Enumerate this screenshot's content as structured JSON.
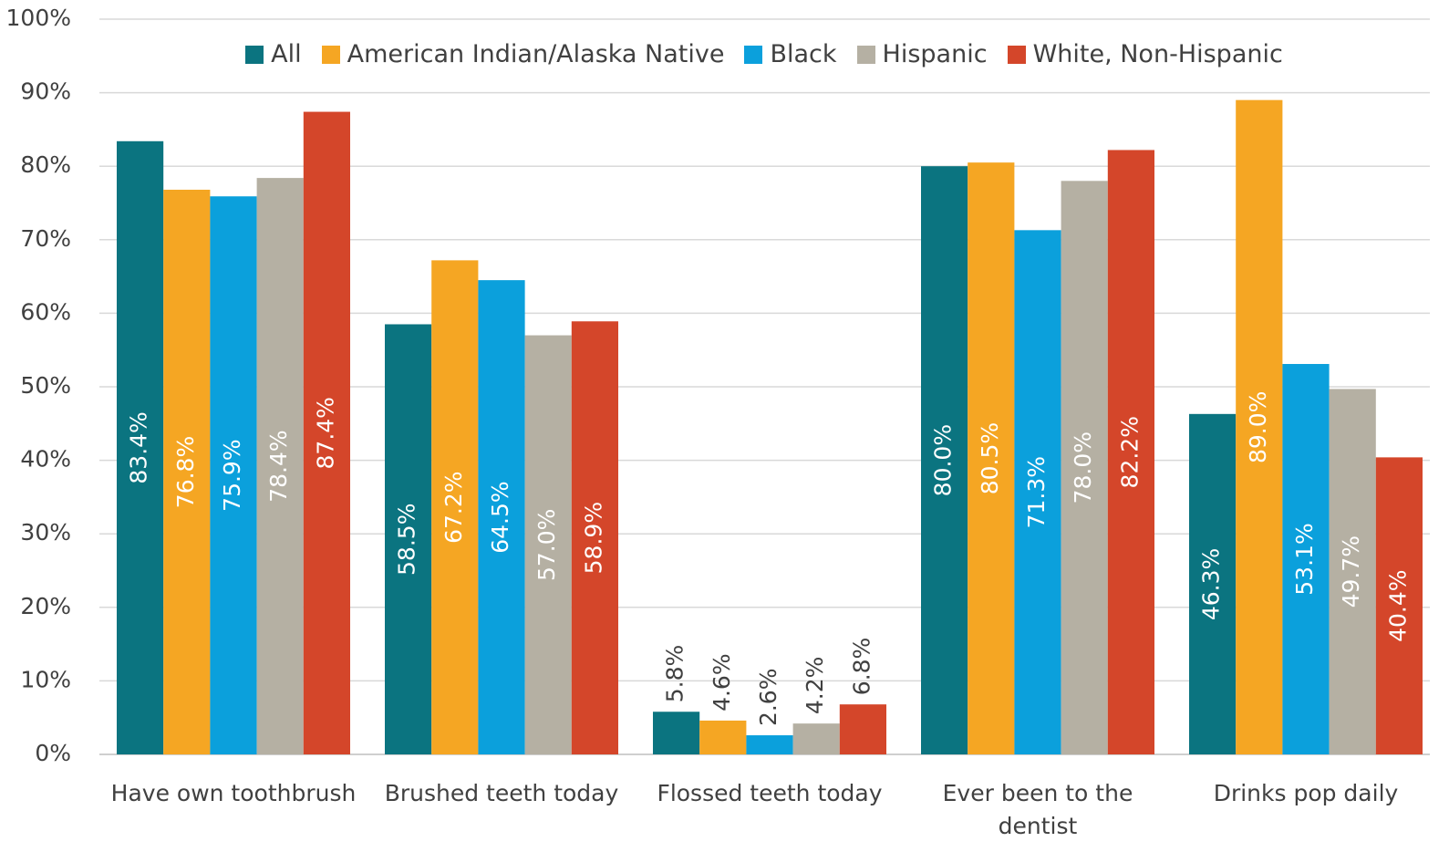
{
  "chart_data": {
    "type": "bar",
    "legend": "top",
    "grid": true,
    "categories": [
      "Have own toothbrush",
      "Brushed teeth today",
      "Flossed teeth today",
      "Ever been to the dentist",
      "Drinks pop daily"
    ],
    "ylim": [
      0,
      100
    ],
    "yticks": [
      {
        "value": 0,
        "label": "0%"
      },
      {
        "value": 10,
        "label": "10%"
      },
      {
        "value": 20,
        "label": "20%"
      },
      {
        "value": 30,
        "label": "30%"
      },
      {
        "value": 40,
        "label": "40%"
      },
      {
        "value": 50,
        "label": "50%"
      },
      {
        "value": 60,
        "label": "60%"
      },
      {
        "value": 70,
        "label": "70%"
      },
      {
        "value": 80,
        "label": "80%"
      },
      {
        "value": 90,
        "label": "90%"
      },
      {
        "value": 100,
        "label": "100%"
      }
    ],
    "series": [
      {
        "name": "All",
        "color": "#0b7480",
        "values": [
          83.4,
          58.5,
          5.8,
          80.0,
          46.3
        ],
        "value_labels": [
          "83.4%",
          "58.5%",
          "5.8%",
          "80.0%",
          "46.3%"
        ]
      },
      {
        "name": "American Indian/Alaska Native",
        "color": "#f5a623",
        "values": [
          76.8,
          67.2,
          4.6,
          80.5,
          89.0
        ],
        "value_labels": [
          "76.8%",
          "67.2%",
          "4.6%",
          "80.5%",
          "89.0%"
        ]
      },
      {
        "name": "Black",
        "color": "#0ba0dc",
        "values": [
          75.9,
          64.5,
          2.6,
          71.3,
          53.1
        ],
        "value_labels": [
          "75.9%",
          "64.5%",
          "2.6%",
          "71.3%",
          "53.1%"
        ]
      },
      {
        "name": "Hispanic",
        "color": "#b5b0a3",
        "values": [
          78.4,
          57.0,
          4.2,
          78.0,
          49.7
        ],
        "value_labels": [
          "78.4%",
          "57.0%",
          "4.2%",
          "78.0%",
          "49.7%"
        ]
      },
      {
        "name": "White, Non-Hispanic",
        "color": "#d4462a",
        "values": [
          87.4,
          58.9,
          6.8,
          82.2,
          40.4
        ],
        "value_labels": [
          "87.4%",
          "58.9%",
          "6.8%",
          "82.2%",
          "40.4%"
        ]
      }
    ]
  }
}
